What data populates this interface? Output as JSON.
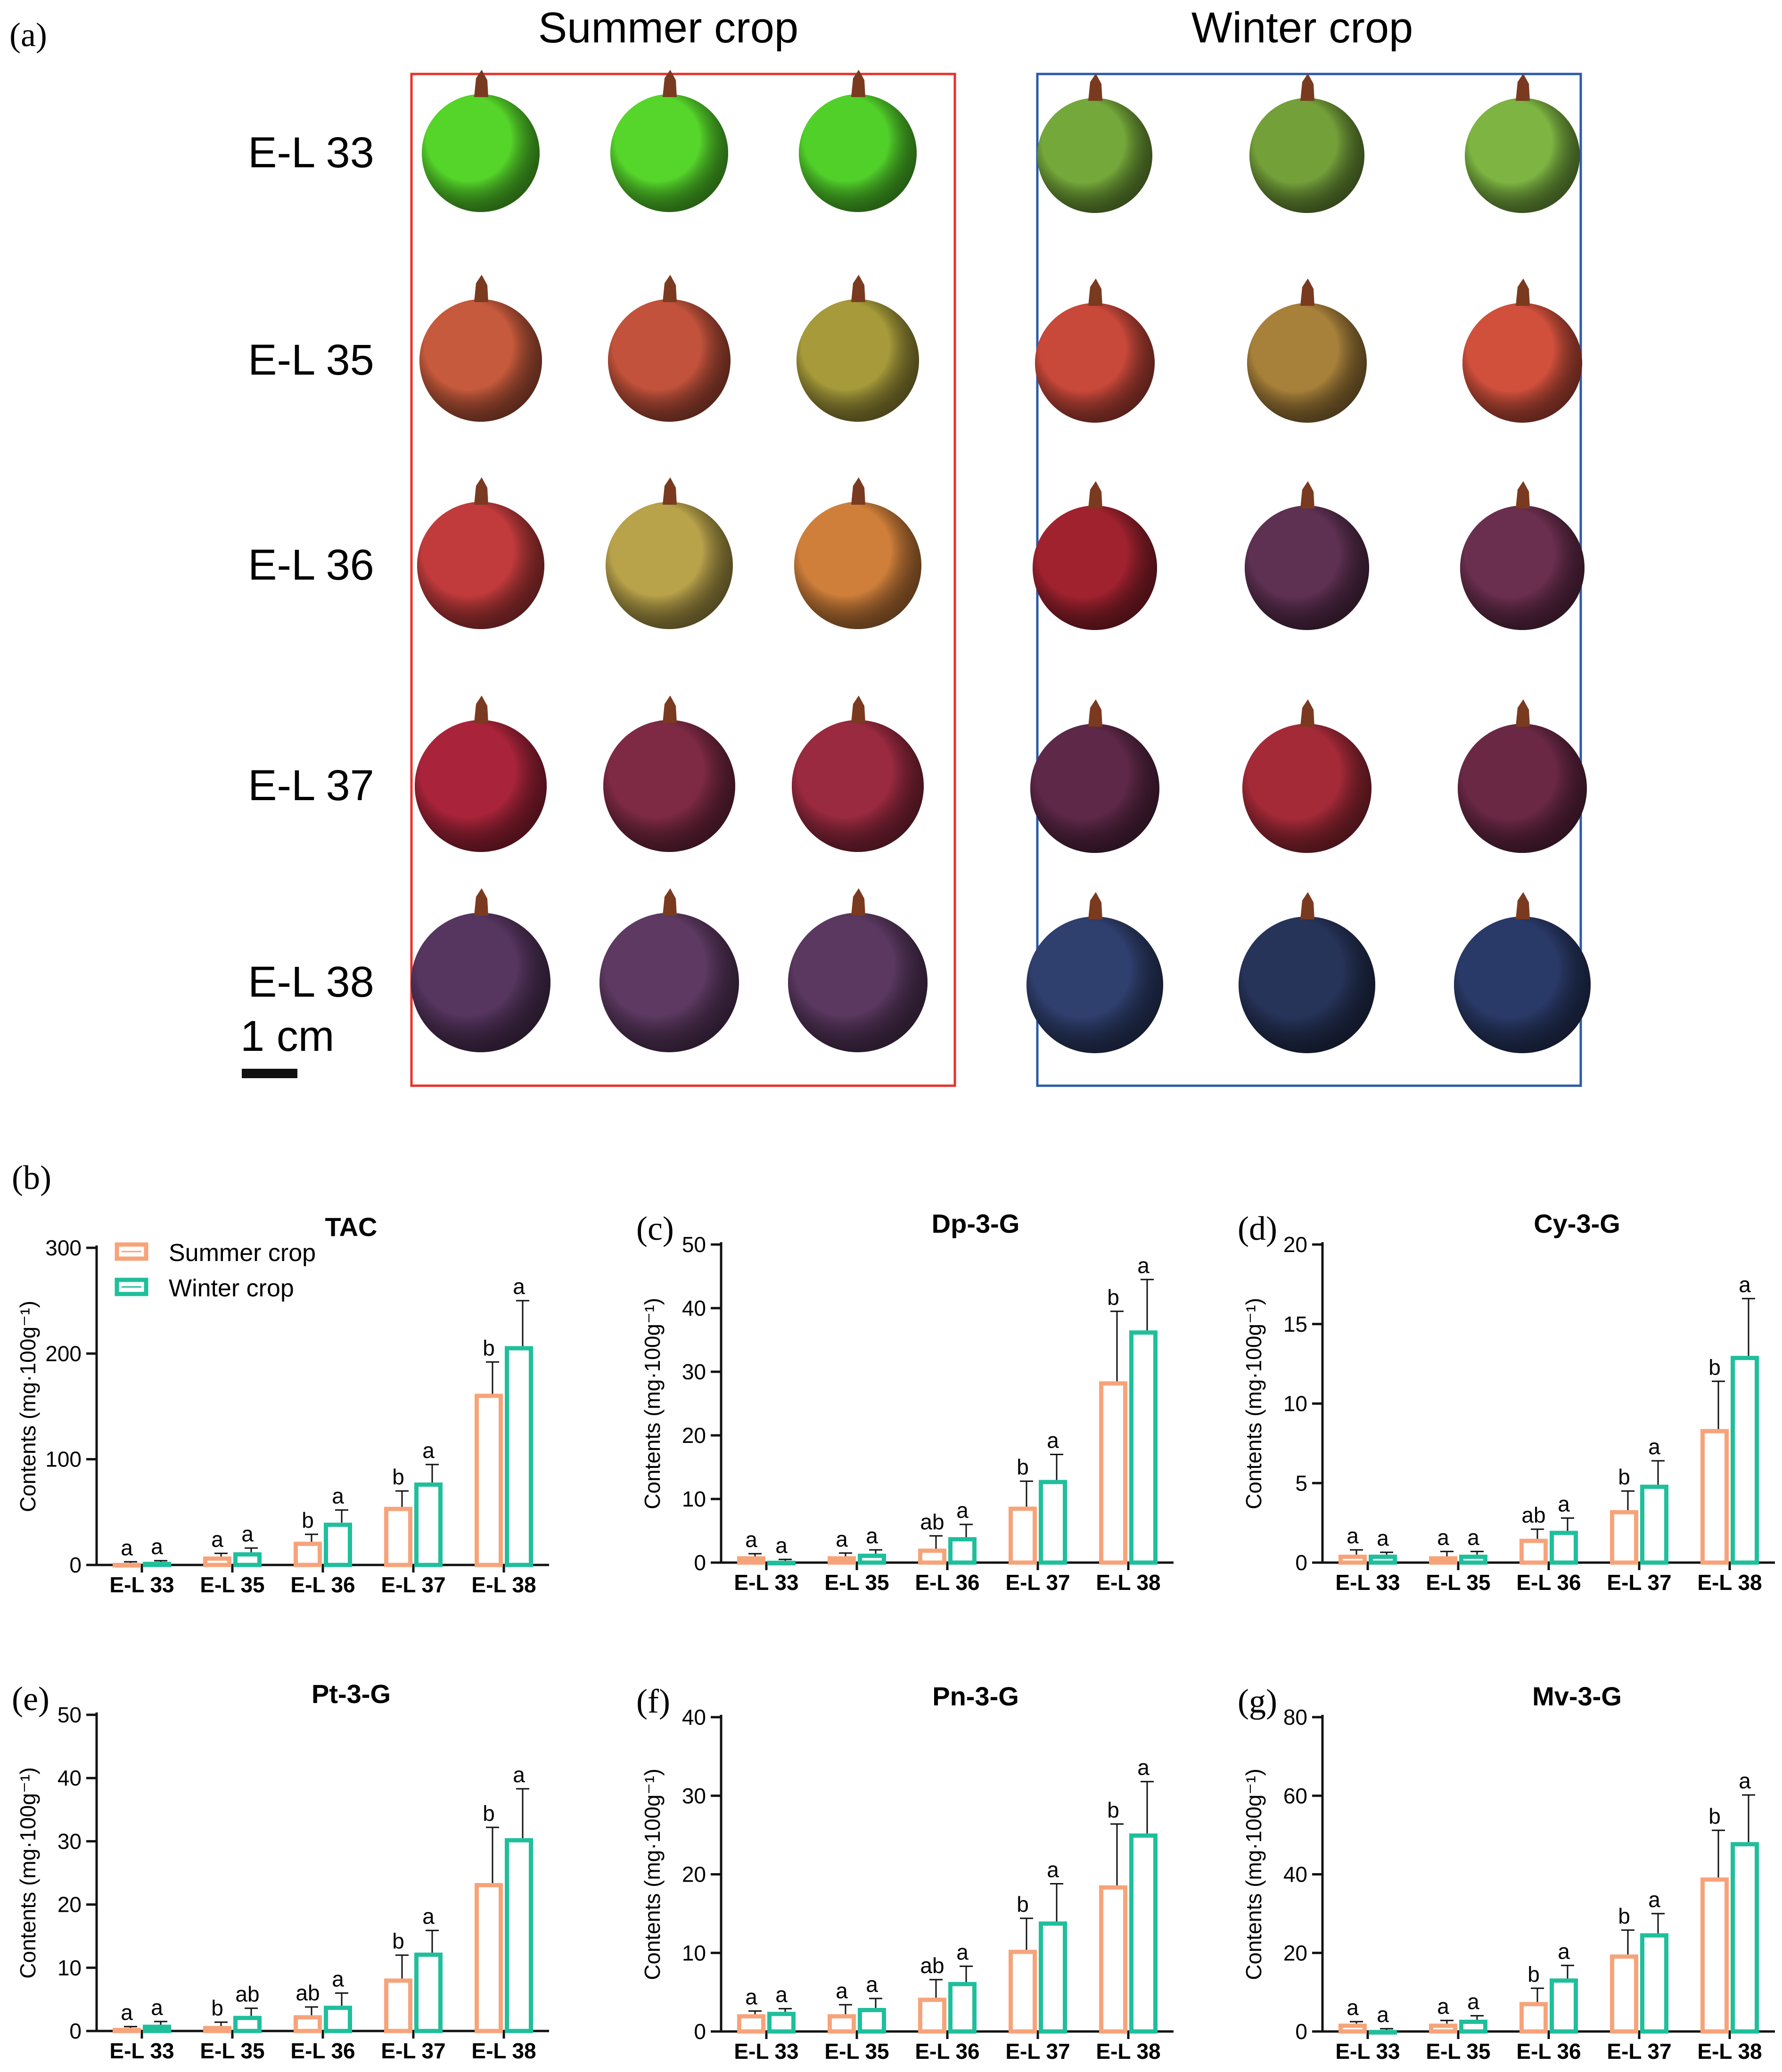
{
  "panel_a": {
    "label": "(a)",
    "summer_title": "Summer crop",
    "winter_title": "Winter crop",
    "stages": [
      "E-L 33",
      "E-L 35",
      "E-L 36",
      "E-L 37",
      "E-L 38"
    ],
    "scale_label": "1 cm",
    "colors": {
      "summer_box": "#e8302a",
      "winter_box": "#2b5aa8"
    },
    "berry_colors": {
      "summer": [
        [
          "#55d42a",
          "#56d62b",
          "#52d02a"
        ],
        [
          "#c65a3c",
          "#c2523b",
          "#a69a3a"
        ],
        [
          "#c23b3c",
          "#b8a24a",
          "#cf7f3a"
        ],
        [
          "#a9243a",
          "#7e2a45",
          "#9a2a40"
        ],
        [
          "#56355f",
          "#5e3a63",
          "#5a3860"
        ]
      ],
      "winter": [
        [
          "#75a83a",
          "#74a03a",
          "#7db442"
        ],
        [
          "#c8483a",
          "#a7803a",
          "#d0503c"
        ],
        [
          "#a0222f",
          "#5e3052",
          "#6a2e4e"
        ],
        [
          "#5e2848",
          "#a52a38",
          "#6a2845"
        ],
        [
          "#2f3f6e",
          "#27345a",
          "#2a3a68"
        ]
      ]
    }
  },
  "legend": {
    "summer": "Summer crop",
    "winter": "Winter crop"
  },
  "colors": {
    "summer": "#f7a37a",
    "winter": "#1fbf9c"
  },
  "chart_data": [
    {
      "type": "bar",
      "panel": "(b)",
      "title": "TAC",
      "ylabel": "Contents (mg·100g⁻¹)",
      "ylim": [
        0,
        300
      ],
      "yticks": [
        0,
        100,
        200,
        300
      ],
      "categories": [
        "E-L 33",
        "E-L 35",
        "E-L 36",
        "E-L 37",
        "E-L 38"
      ],
      "series": [
        {
          "name": "Summer crop",
          "values": [
            2,
            8,
            22,
            55,
            162
          ],
          "errors": [
            1,
            3,
            7,
            15,
            30
          ],
          "letters": [
            "a",
            "a",
            "b",
            "b",
            "b"
          ]
        },
        {
          "name": "Winter crop",
          "values": [
            3,
            12,
            40,
            78,
            207
          ],
          "errors": [
            1,
            4,
            12,
            17,
            43
          ],
          "letters": [
            "a",
            "a",
            "a",
            "a",
            "a"
          ]
        }
      ]
    },
    {
      "type": "bar",
      "panel": "(c)",
      "title": "Dp-3-G",
      "ylabel": "Contents (mg·100g⁻¹)",
      "ylim": [
        0,
        50
      ],
      "yticks": [
        0,
        10,
        20,
        30,
        40,
        50
      ],
      "categories": [
        "E-L 33",
        "E-L 35",
        "E-L 36",
        "E-L 37",
        "E-L 38"
      ],
      "series": [
        {
          "name": "Summer crop",
          "values": [
            1,
            1,
            2.2,
            8.8,
            28.5
          ],
          "errors": [
            0.4,
            0.5,
            2,
            4,
            11
          ],
          "letters": [
            "a",
            "a",
            "ab",
            "b",
            "b"
          ]
        },
        {
          "name": "Winter crop",
          "values": [
            0.3,
            1.4,
            4,
            13,
            36.5
          ],
          "errors": [
            0.2,
            0.6,
            2,
            4,
            8
          ],
          "letters": [
            "a",
            "a",
            "a",
            "a",
            "a"
          ]
        }
      ]
    },
    {
      "type": "bar",
      "panel": "(d)",
      "title": "Cy-3-G",
      "ylabel": "Contents (mg·100g⁻¹)",
      "ylim": [
        0,
        20
      ],
      "yticks": [
        0,
        5,
        10,
        15,
        20
      ],
      "categories": [
        "E-L 33",
        "E-L 35",
        "E-L 36",
        "E-L 37",
        "E-L 38"
      ],
      "series": [
        {
          "name": "Summer crop",
          "values": [
            0.5,
            0.4,
            1.5,
            3.3,
            8.4
          ],
          "errors": [
            0.3,
            0.3,
            0.6,
            1.2,
            3
          ],
          "letters": [
            "a",
            "a",
            "ab",
            "b",
            "b"
          ]
        },
        {
          "name": "Winter crop",
          "values": [
            0.5,
            0.5,
            2,
            4.9,
            13
          ],
          "errors": [
            0.15,
            0.2,
            0.8,
            1.5,
            3.6
          ],
          "letters": [
            "a",
            "a",
            "a",
            "a",
            "a"
          ]
        }
      ]
    },
    {
      "type": "bar",
      "panel": "(e)",
      "title": "Pt-3-G",
      "ylabel": "Contents (mg·100g⁻¹)",
      "ylim": [
        0,
        50
      ],
      "yticks": [
        0,
        10,
        20,
        30,
        40,
        50
      ],
      "categories": [
        "E-L 33",
        "E-L 35",
        "E-L 36",
        "E-L 37",
        "E-L 38"
      ],
      "series": [
        {
          "name": "Summer crop",
          "values": [
            0.5,
            0.8,
            2.5,
            8.3,
            23.4
          ],
          "errors": [
            0.2,
            0.6,
            1.3,
            3.7,
            8.8
          ],
          "letters": [
            "a",
            "b",
            "ab",
            "b",
            "b"
          ]
        },
        {
          "name": "Winter crop",
          "values": [
            1,
            2.4,
            4,
            12.4,
            30.5
          ],
          "errors": [
            0.5,
            1.2,
            2,
            3.5,
            7.8
          ],
          "letters": [
            "a",
            "ab",
            "a",
            "a",
            "a"
          ]
        }
      ]
    },
    {
      "type": "bar",
      "panel": "(f)",
      "title": "Pn-3-G",
      "ylabel": "Contents (mg·100g⁻¹)",
      "ylim": [
        0,
        40
      ],
      "yticks": [
        0,
        10,
        20,
        30,
        40
      ],
      "categories": [
        "E-L 33",
        "E-L 35",
        "E-L 36",
        "E-L 37",
        "E-L 38"
      ],
      "series": [
        {
          "name": "Summer crop",
          "values": [
            2.2,
            2.2,
            4.3,
            10.4,
            18.6
          ],
          "errors": [
            0.4,
            1.2,
            2.3,
            4,
            7.8
          ],
          "letters": [
            "a",
            "a",
            "ab",
            "b",
            "b"
          ]
        },
        {
          "name": "Winter crop",
          "values": [
            2.5,
            3,
            6.3,
            14,
            25.2
          ],
          "errors": [
            0.4,
            1.2,
            2,
            4.8,
            6.6
          ],
          "letters": [
            "a",
            "a",
            "a",
            "a",
            "a"
          ]
        }
      ]
    },
    {
      "type": "bar",
      "panel": "(g)",
      "title": "Mv-3-G",
      "ylabel": "Contents (mg·100g⁻¹)",
      "ylim": [
        0,
        80
      ],
      "yticks": [
        0,
        20,
        40,
        60,
        80
      ],
      "categories": [
        "E-L 33",
        "E-L 35",
        "E-L 36",
        "E-L 37",
        "E-L 38"
      ],
      "series": [
        {
          "name": "Summer crop",
          "values": [
            2,
            2,
            7.5,
            19.6,
            39.2
          ],
          "errors": [
            0.5,
            0.8,
            3.5,
            6.2,
            12
          ],
          "letters": [
            "a",
            "a",
            "b",
            "b",
            "b"
          ]
        },
        {
          "name": "Winter crop",
          "values": [
            0.4,
            3,
            13.5,
            25,
            48.2
          ],
          "errors": [
            0.3,
            1,
            3.3,
            5,
            12
          ],
          "letters": [
            "a",
            "a",
            "a",
            "a",
            "a"
          ]
        }
      ]
    }
  ]
}
